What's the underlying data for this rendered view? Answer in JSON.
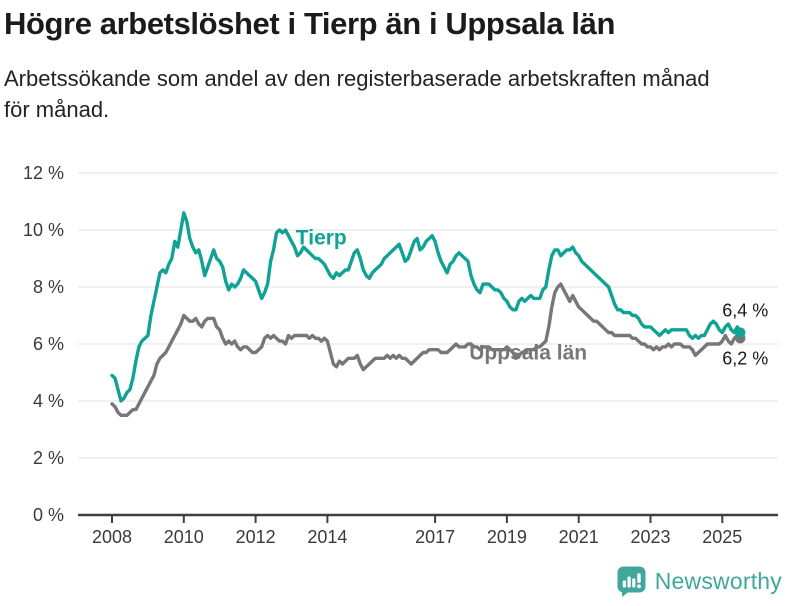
{
  "header": {
    "title": "Högre arbetslöshet i Tierp än i Uppsala län",
    "subtitle_lines": [
      "Arbetssökande som andel av den registerbaserade arbetskraften månad",
      "för månad."
    ]
  },
  "logo": {
    "text": "Newsworthy",
    "color": "#3FA79B",
    "icon": "newsworthy-bar-chart-bubble-icon"
  },
  "chart_data": {
    "type": "line",
    "title": "Högre arbetslöshet i Tierp än i Uppsala län",
    "subtitle": "Arbetssökande som andel av den registerbaserade arbetskraften månad för månad.",
    "xlabel": "",
    "ylabel": "",
    "ylim": [
      0,
      12
    ],
    "grid": "horizontal",
    "legend": "inline-labels",
    "x_tick_years": [
      2008,
      2010,
      2012,
      2014,
      2017,
      2019,
      2021,
      2023,
      2025
    ],
    "x_tick_labels": [
      "2008",
      "2010",
      "2012",
      "2014",
      "2017",
      "2019",
      "2021",
      "2023",
      "2025"
    ],
    "y_ticks": [
      0,
      2,
      4,
      6,
      8,
      10,
      12
    ],
    "y_tick_labels": [
      "0 %",
      "2 %",
      "4 %",
      "6 %",
      "8 %",
      "10 %",
      "12 %"
    ],
    "points_per_year": 12,
    "x_start": 2008.0,
    "x_end": 2025.5,
    "grid_color": "#E0E0E0",
    "axis_color": "#3F3F3F",
    "text_color": "#3A3A3A",
    "value_label_color": "#1b1b1b",
    "series": [
      {
        "name": "Tierp",
        "color": "#0FA295",
        "start_year": 2008,
        "label": {
          "x": 2013.12,
          "y": 9.5
        },
        "values": [
          4.9,
          4.8,
          4.4,
          4.0,
          4.1,
          4.3,
          4.4,
          4.8,
          5.4,
          5.9,
          6.1,
          6.2,
          6.3,
          7.0,
          7.5,
          8.0,
          8.5,
          8.6,
          8.5,
          8.8,
          9.0,
          9.6,
          9.4,
          10.0,
          10.6,
          10.3,
          9.7,
          9.4,
          9.2,
          9.3,
          8.9,
          8.4,
          8.7,
          9.0,
          9.3,
          9.0,
          8.9,
          8.7,
          8.2,
          7.9,
          8.1,
          8.0,
          8.1,
          8.3,
          8.6,
          8.5,
          8.4,
          8.3,
          8.2,
          7.9,
          7.6,
          7.8,
          8.1,
          8.9,
          9.3,
          9.9,
          10.0,
          9.9,
          10.0,
          9.8,
          9.6,
          9.4,
          9.1,
          9.2,
          9.4,
          9.3,
          9.2,
          9.1,
          9.0,
          9.0,
          8.9,
          8.8,
          8.6,
          8.4,
          8.3,
          8.5,
          8.4,
          8.5,
          8.6,
          8.6,
          8.9,
          9.2,
          9.3,
          9.0,
          8.6,
          8.4,
          8.3,
          8.5,
          8.6,
          8.7,
          8.8,
          9.0,
          9.1,
          9.2,
          9.3,
          9.4,
          9.5,
          9.2,
          8.9,
          9.0,
          9.3,
          9.6,
          9.7,
          9.3,
          9.4,
          9.6,
          9.7,
          9.8,
          9.6,
          9.2,
          8.9,
          8.7,
          8.5,
          8.8,
          8.9,
          9.1,
          9.2,
          9.1,
          9.0,
          8.9,
          8.4,
          8.1,
          7.9,
          7.8,
          8.1,
          8.1,
          8.1,
          8.0,
          7.9,
          7.9,
          7.8,
          7.6,
          7.5,
          7.3,
          7.2,
          7.2,
          7.5,
          7.6,
          7.5,
          7.6,
          7.7,
          7.6,
          7.6,
          7.6,
          7.9,
          8.0,
          8.6,
          9.1,
          9.3,
          9.3,
          9.1,
          9.2,
          9.3,
          9.3,
          9.4,
          9.2,
          9.1,
          8.9,
          8.8,
          8.7,
          8.6,
          8.5,
          8.4,
          8.3,
          8.2,
          8.1,
          8.0,
          7.7,
          7.4,
          7.2,
          7.2,
          7.1,
          7.1,
          7.1,
          7.0,
          7.0,
          6.9,
          6.7,
          6.6,
          6.6,
          6.6,
          6.5,
          6.4,
          6.3,
          6.4,
          6.5,
          6.4,
          6.5,
          6.5,
          6.5,
          6.5,
          6.5,
          6.5,
          6.3,
          6.2,
          6.3,
          6.2,
          6.3,
          6.3,
          6.5,
          6.7,
          6.8,
          6.7,
          6.5,
          6.4,
          6.6,
          6.7,
          6.5,
          6.4,
          6.6,
          6.4
        ]
      },
      {
        "name": "Uppsala län",
        "color": "#77777B",
        "start_year": 2008,
        "label": {
          "x": 2017.95,
          "y": 5.45
        },
        "values": [
          3.9,
          3.8,
          3.6,
          3.5,
          3.5,
          3.5,
          3.6,
          3.7,
          3.7,
          3.9,
          4.1,
          4.3,
          4.5,
          4.7,
          4.9,
          5.3,
          5.5,
          5.6,
          5.7,
          5.9,
          6.1,
          6.3,
          6.5,
          6.7,
          7.0,
          6.9,
          6.8,
          6.8,
          6.9,
          6.7,
          6.6,
          6.8,
          6.9,
          6.9,
          6.9,
          6.6,
          6.5,
          6.2,
          6.0,
          6.1,
          6.0,
          6.1,
          5.9,
          5.8,
          5.9,
          5.9,
          5.8,
          5.7,
          5.7,
          5.8,
          5.9,
          6.2,
          6.3,
          6.2,
          6.3,
          6.2,
          6.1,
          6.1,
          6.0,
          6.3,
          6.2,
          6.3,
          6.3,
          6.3,
          6.3,
          6.3,
          6.2,
          6.3,
          6.2,
          6.2,
          6.1,
          6.2,
          6.1,
          5.7,
          5.3,
          5.2,
          5.4,
          5.3,
          5.4,
          5.5,
          5.5,
          5.5,
          5.6,
          5.3,
          5.1,
          5.2,
          5.3,
          5.4,
          5.5,
          5.5,
          5.5,
          5.5,
          5.6,
          5.5,
          5.6,
          5.5,
          5.6,
          5.5,
          5.5,
          5.4,
          5.3,
          5.4,
          5.5,
          5.6,
          5.7,
          5.7,
          5.8,
          5.8,
          5.8,
          5.8,
          5.7,
          5.7,
          5.7,
          5.8,
          5.9,
          6.0,
          5.9,
          5.9,
          5.9,
          6.0,
          6.0,
          5.9,
          5.9,
          5.8,
          5.9,
          5.9,
          5.9,
          5.8,
          5.8,
          5.8,
          5.8,
          5.8,
          5.9,
          5.8,
          5.7,
          5.5,
          5.6,
          5.7,
          5.7,
          5.8,
          5.8,
          5.8,
          5.9,
          5.9,
          6.0,
          6.1,
          6.6,
          7.3,
          7.8,
          8.0,
          8.1,
          7.9,
          7.7,
          7.5,
          7.7,
          7.5,
          7.3,
          7.2,
          7.1,
          7.0,
          6.9,
          6.8,
          6.8,
          6.7,
          6.6,
          6.5,
          6.4,
          6.4,
          6.3,
          6.3,
          6.3,
          6.3,
          6.3,
          6.3,
          6.2,
          6.2,
          6.1,
          6.0,
          6.0,
          5.9,
          5.9,
          5.8,
          5.9,
          5.8,
          5.9,
          5.9,
          6.0,
          5.9,
          6.0,
          6.0,
          6.0,
          5.9,
          5.9,
          5.9,
          5.8,
          5.6,
          5.7,
          5.8,
          5.9,
          6.0,
          6.0,
          6.0,
          6.0,
          6.0,
          6.1,
          6.3,
          6.1,
          6.0,
          6.2,
          6.3,
          6.2
        ]
      }
    ],
    "end_labels": [
      {
        "series": "Tierp",
        "text": "6,4 %",
        "placement": "above"
      },
      {
        "series": "Uppsala län",
        "text": "6,2 %",
        "placement": "below"
      }
    ]
  }
}
